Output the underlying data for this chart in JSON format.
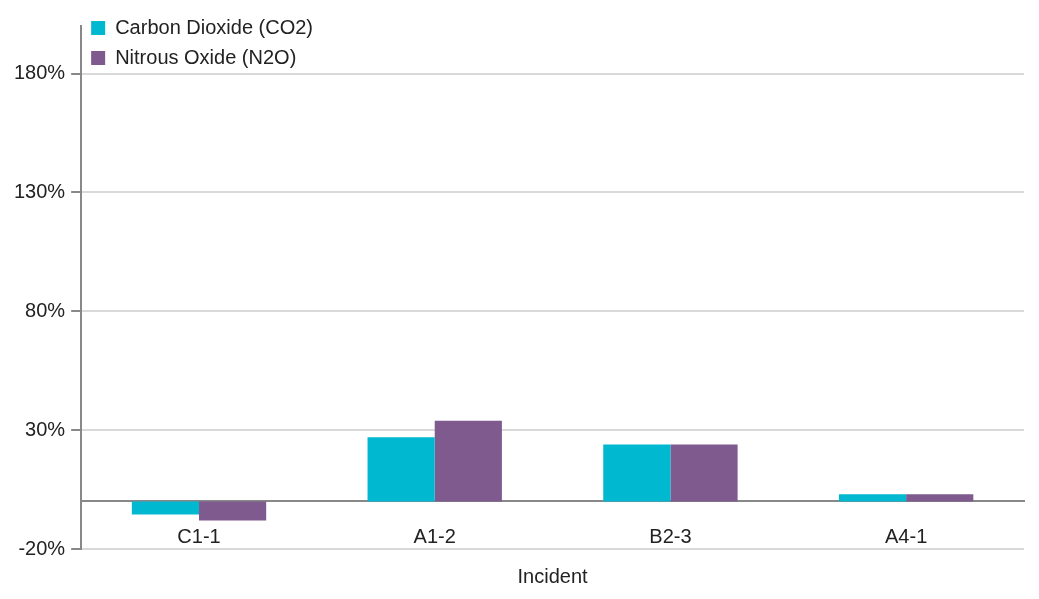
{
  "chart_data": {
    "type": "bar",
    "xlabel": "Incident",
    "categories": [
      "C1-1",
      "A1-2",
      "B2-3",
      "A4-1"
    ],
    "series": [
      {
        "name": "Carbon Dioxide (CO2)",
        "color": "#00b8d0",
        "values": [
          -5.5,
          27,
          24,
          3
        ]
      },
      {
        "name": "Nitrous Oxide (N2O)",
        "color": "#7e5a8e",
        "values": [
          -8,
          34,
          24,
          3
        ]
      }
    ],
    "ylim": [
      -20,
      200
    ],
    "yticks": [
      {
        "value": -20,
        "label": "-20%"
      },
      {
        "value": 30,
        "label": "30%"
      },
      {
        "value": 80,
        "label": "80%"
      },
      {
        "value": 130,
        "label": "130%"
      },
      {
        "value": 180,
        "label": "180%"
      }
    ],
    "grid": "y",
    "legend": "top left"
  }
}
